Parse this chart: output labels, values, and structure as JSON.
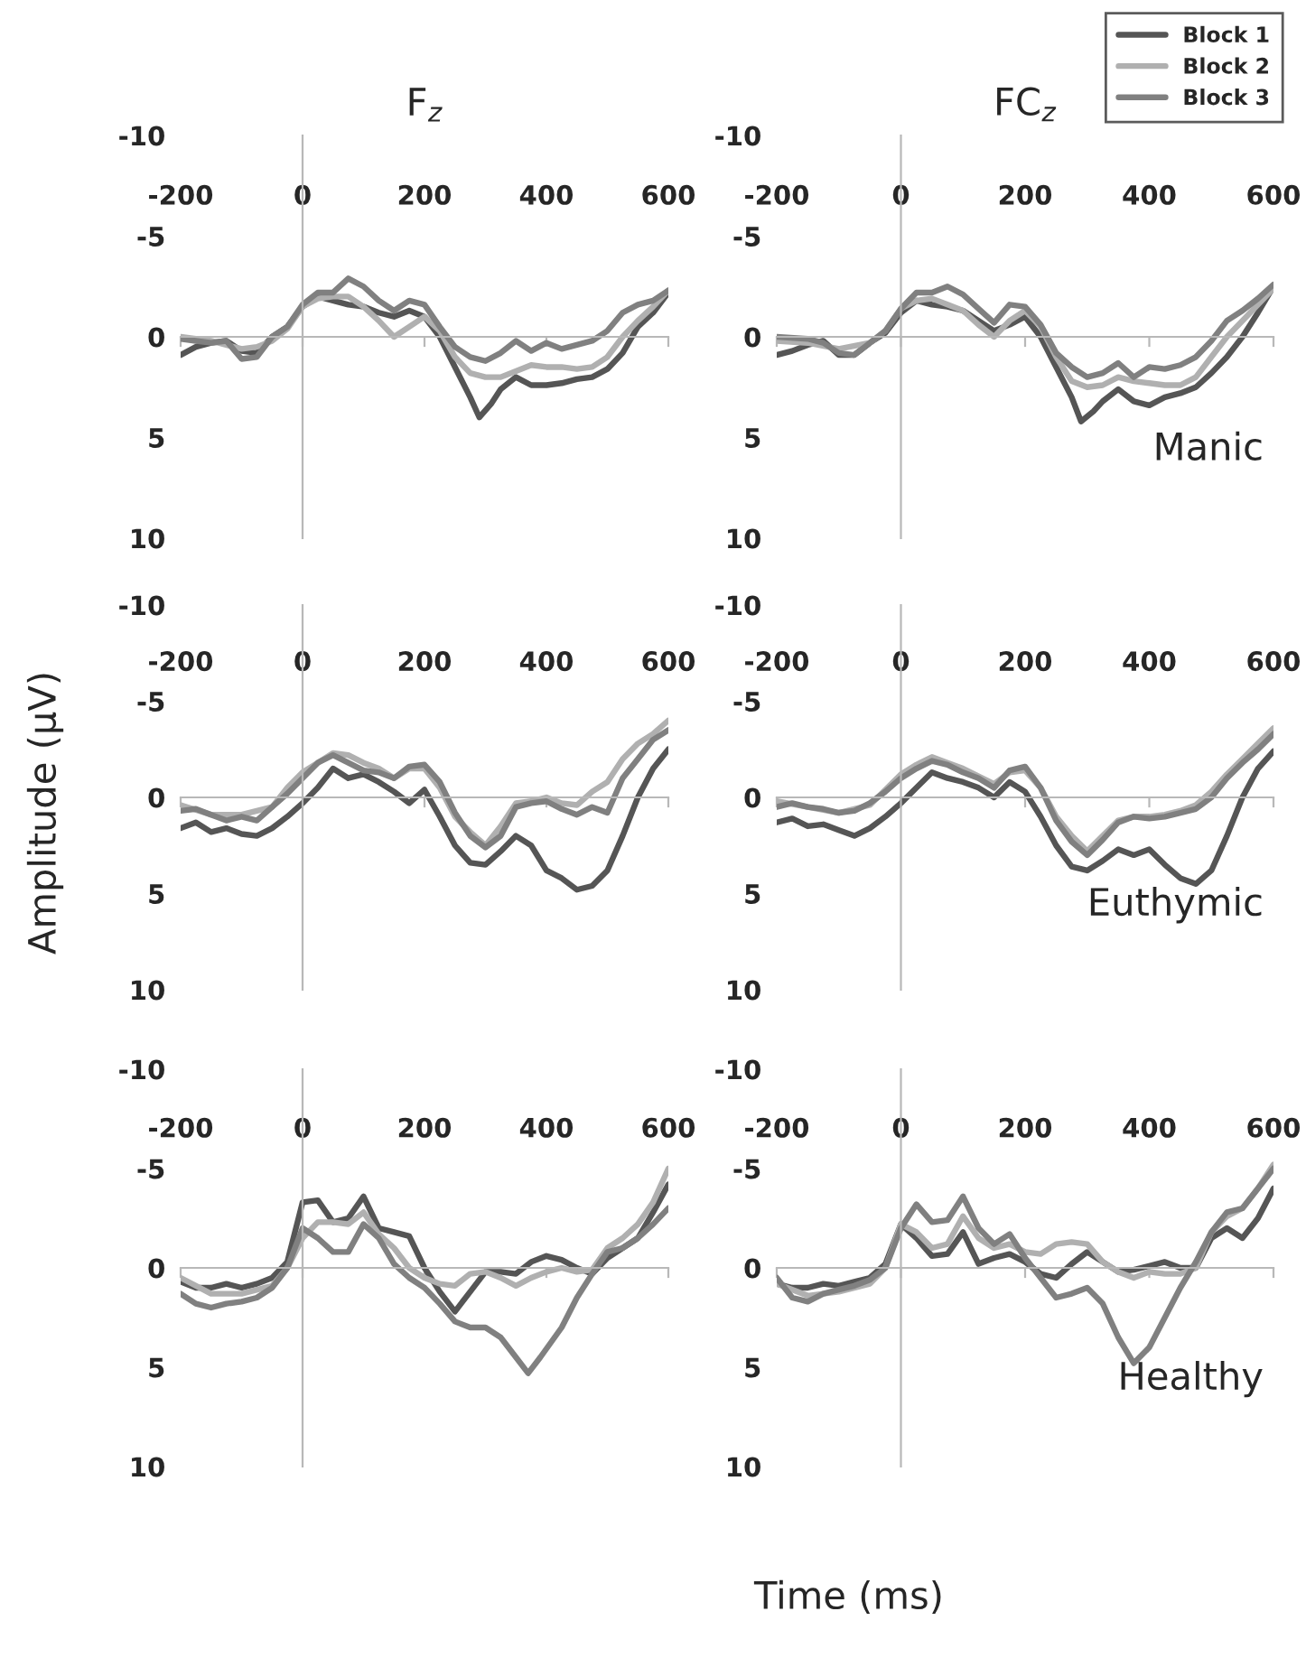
{
  "chart_data": [
    {
      "type": "line",
      "title": "F$_{z}$",
      "xlim": [
        -200,
        600
      ],
      "ylim": [
        10,
        -10
      ],
      "xticks": [
        -200,
        0,
        200,
        400,
        600
      ],
      "yticks": [
        -10,
        -5,
        0,
        5,
        10
      ],
      "legend": false,
      "series": [
        {
          "color": "#555555",
          "x": [
            -200,
            -175,
            -150,
            -125,
            -100,
            -75,
            -50,
            -25,
            0,
            25,
            50,
            75,
            100,
            125,
            150,
            175,
            200,
            225,
            250,
            275,
            290,
            310,
            325,
            350,
            375,
            400,
            425,
            450,
            475,
            500,
            525,
            550,
            575,
            600
          ],
          "values": [
            0.9,
            0.5,
            0.3,
            0.2,
            0.7,
            0.8,
            0.0,
            -0.5,
            -1.5,
            -2.0,
            -1.8,
            -1.6,
            -1.5,
            -1.2,
            -1.0,
            -1.3,
            -1.0,
            0.0,
            1.5,
            3.0,
            4.0,
            3.3,
            2.6,
            2.0,
            2.4,
            2.4,
            2.3,
            2.1,
            2.0,
            1.6,
            0.8,
            -0.5,
            -1.2,
            -2.2
          ]
        },
        {
          "color": "#b0b0b0",
          "x": [
            -200,
            -150,
            -100,
            -75,
            -50,
            -25,
            0,
            25,
            50,
            75,
            100,
            125,
            150,
            175,
            200,
            225,
            250,
            275,
            300,
            325,
            350,
            375,
            400,
            425,
            450,
            475,
            500,
            525,
            550,
            575,
            600
          ],
          "values": [
            0.0,
            0.2,
            0.6,
            0.5,
            0.2,
            -0.4,
            -1.5,
            -1.9,
            -2.0,
            -2.0,
            -1.5,
            -0.8,
            0.0,
            -0.5,
            -1.0,
            -0.3,
            1.0,
            1.8,
            2.0,
            2.0,
            1.7,
            1.4,
            1.5,
            1.5,
            1.6,
            1.5,
            1.0,
            0.0,
            -0.8,
            -1.5,
            -2.3
          ]
        },
        {
          "color": "#808080",
          "x": [
            -200,
            -175,
            -150,
            -125,
            -100,
            -75,
            -50,
            -25,
            0,
            25,
            50,
            75,
            100,
            125,
            150,
            175,
            200,
            225,
            250,
            275,
            300,
            325,
            350,
            375,
            400,
            425,
            450,
            475,
            500,
            525,
            550,
            575,
            600
          ],
          "values": [
            0.1,
            0.2,
            0.3,
            0.2,
            1.1,
            1.0,
            0.0,
            -0.5,
            -1.6,
            -2.2,
            -2.2,
            -2.9,
            -2.5,
            -1.8,
            -1.3,
            -1.8,
            -1.6,
            -0.5,
            0.5,
            1.0,
            1.2,
            0.8,
            0.2,
            0.7,
            0.3,
            0.6,
            0.4,
            0.2,
            -0.3,
            -1.2,
            -1.6,
            -1.8,
            -2.3
          ]
        }
      ]
    },
    {
      "type": "line",
      "title": "FC$_{z}$",
      "annotations": [
        "Manic"
      ],
      "xlim": [
        -200,
        600
      ],
      "ylim": [
        10,
        -10
      ],
      "xticks": [
        -200,
        0,
        200,
        400,
        600
      ],
      "yticks": [
        -10,
        -5,
        0,
        5,
        10
      ],
      "legend": "top right",
      "series": [
        {
          "name": "Block 1",
          "color": "#555555",
          "x": [
            -200,
            -175,
            -150,
            -125,
            -100,
            -75,
            -50,
            -25,
            0,
            25,
            50,
            75,
            100,
            125,
            150,
            175,
            200,
            225,
            250,
            275,
            290,
            310,
            325,
            350,
            375,
            400,
            425,
            450,
            475,
            500,
            525,
            550,
            575,
            600
          ],
          "values": [
            0.9,
            0.7,
            0.4,
            0.2,
            0.9,
            0.9,
            0.3,
            -0.2,
            -1.2,
            -1.8,
            -1.6,
            -1.5,
            -1.3,
            -0.8,
            -0.3,
            -0.6,
            -1.0,
            0.0,
            1.5,
            3.0,
            4.2,
            3.7,
            3.2,
            2.6,
            3.2,
            3.4,
            3.0,
            2.8,
            2.5,
            1.8,
            1.0,
            0.0,
            -1.2,
            -2.5
          ]
        },
        {
          "name": "Block 2",
          "color": "#b0b0b0",
          "x": [
            -200,
            -150,
            -100,
            -50,
            -25,
            0,
            25,
            50,
            75,
            100,
            125,
            150,
            175,
            200,
            225,
            250,
            275,
            300,
            325,
            350,
            375,
            400,
            425,
            450,
            475,
            500,
            525,
            550,
            575,
            600
          ],
          "values": [
            0.2,
            0.3,
            0.6,
            0.3,
            -0.3,
            -1.4,
            -1.8,
            -1.9,
            -1.6,
            -1.3,
            -0.6,
            0.0,
            -0.8,
            -1.3,
            -0.5,
            1.0,
            2.2,
            2.5,
            2.4,
            2.0,
            2.2,
            2.3,
            2.4,
            2.4,
            2.0,
            1.0,
            0.0,
            -0.8,
            -1.6,
            -2.4
          ]
        },
        {
          "name": "Block 3",
          "color": "#808080",
          "x": [
            -200,
            -150,
            -125,
            -100,
            -75,
            -50,
            -25,
            0,
            25,
            50,
            75,
            100,
            125,
            150,
            175,
            200,
            225,
            250,
            275,
            300,
            325,
            350,
            375,
            400,
            425,
            450,
            475,
            500,
            525,
            550,
            575,
            600
          ],
          "values": [
            0.0,
            0.1,
            0.3,
            0.8,
            0.9,
            0.3,
            -0.3,
            -1.4,
            -2.2,
            -2.2,
            -2.5,
            -2.1,
            -1.4,
            -0.7,
            -1.6,
            -1.5,
            -0.6,
            0.8,
            1.5,
            2.0,
            1.8,
            1.3,
            2.0,
            1.5,
            1.6,
            1.4,
            1.0,
            0.2,
            -0.8,
            -1.3,
            -1.9,
            -2.6
          ]
        }
      ]
    },
    {
      "type": "line",
      "ylabel": "Amplitude (µV)",
      "xlim": [
        -200,
        600
      ],
      "ylim": [
        10,
        -10
      ],
      "xticks": [
        -200,
        0,
        200,
        400,
        600
      ],
      "yticks": [
        -10,
        -5,
        0,
        5,
        10
      ],
      "legend": false,
      "series": [
        {
          "color": "#555555",
          "x": [
            -200,
            -175,
            -150,
            -125,
            -100,
            -75,
            -50,
            -25,
            0,
            25,
            50,
            75,
            100,
            125,
            150,
            175,
            200,
            225,
            250,
            275,
            300,
            325,
            350,
            375,
            400,
            425,
            450,
            475,
            500,
            525,
            550,
            575,
            600
          ],
          "values": [
            1.6,
            1.3,
            1.8,
            1.6,
            1.9,
            2.0,
            1.6,
            1.0,
            0.3,
            -0.5,
            -1.5,
            -1.0,
            -1.2,
            -0.8,
            -0.3,
            0.3,
            -0.4,
            1.0,
            2.5,
            3.4,
            3.5,
            2.8,
            2.0,
            2.5,
            3.8,
            4.2,
            4.8,
            4.6,
            3.8,
            2.0,
            0.0,
            -1.5,
            -2.5
          ]
        },
        {
          "color": "#b0b0b0",
          "x": [
            -200,
            -150,
            -100,
            -50,
            -25,
            0,
            25,
            50,
            75,
            100,
            125,
            150,
            175,
            200,
            225,
            250,
            275,
            300,
            325,
            350,
            375,
            400,
            425,
            450,
            475,
            500,
            525,
            550,
            575,
            600
          ],
          "values": [
            0.4,
            0.9,
            0.9,
            0.5,
            -0.5,
            -1.3,
            -1.8,
            -2.3,
            -2.2,
            -1.8,
            -1.5,
            -1.0,
            -1.5,
            -1.5,
            -0.5,
            1.0,
            1.8,
            2.5,
            1.5,
            0.3,
            0.2,
            0.0,
            0.3,
            0.4,
            -0.3,
            -0.8,
            -2.0,
            -2.8,
            -3.3,
            -4.0
          ]
        },
        {
          "color": "#808080",
          "x": [
            -200,
            -175,
            -150,
            -125,
            -100,
            -75,
            -50,
            -25,
            0,
            25,
            50,
            75,
            100,
            125,
            150,
            175,
            200,
            225,
            250,
            275,
            300,
            325,
            350,
            375,
            400,
            425,
            450,
            475,
            500,
            525,
            550,
            575,
            600
          ],
          "values": [
            0.7,
            0.6,
            0.9,
            1.2,
            1.0,
            1.2,
            0.5,
            -0.2,
            -1.0,
            -1.8,
            -2.2,
            -1.8,
            -1.4,
            -1.3,
            -1.0,
            -1.6,
            -1.7,
            -0.8,
            0.8,
            2.0,
            2.6,
            2.0,
            0.5,
            0.3,
            0.2,
            0.6,
            0.9,
            0.5,
            0.8,
            -1.0,
            -2.0,
            -3.0,
            -3.5
          ]
        }
      ]
    },
    {
      "type": "line",
      "annotations": [
        "Euthymic"
      ],
      "xlim": [
        -200,
        600
      ],
      "ylim": [
        10,
        -10
      ],
      "xticks": [
        -200,
        0,
        200,
        400,
        600
      ],
      "yticks": [
        -10,
        -5,
        0,
        5,
        10
      ],
      "legend": false,
      "series": [
        {
          "color": "#555555",
          "x": [
            -200,
            -175,
            -150,
            -125,
            -100,
            -75,
            -50,
            -25,
            0,
            25,
            50,
            75,
            100,
            125,
            150,
            175,
            200,
            225,
            250,
            275,
            300,
            325,
            350,
            375,
            400,
            425,
            450,
            475,
            500,
            525,
            550,
            575,
            600
          ],
          "values": [
            1.3,
            1.1,
            1.5,
            1.4,
            1.7,
            2.0,
            1.6,
            1.0,
            0.3,
            -0.5,
            -1.3,
            -1.0,
            -0.8,
            -0.5,
            0.0,
            -0.8,
            -0.3,
            1.0,
            2.5,
            3.6,
            3.8,
            3.3,
            2.7,
            3.0,
            2.7,
            3.5,
            4.2,
            4.5,
            3.8,
            2.0,
            0.0,
            -1.5,
            -2.4
          ]
        },
        {
          "color": "#b0b0b0",
          "x": [
            -200,
            -150,
            -100,
            -50,
            -25,
            0,
            25,
            50,
            75,
            100,
            125,
            150,
            175,
            200,
            225,
            250,
            275,
            300,
            325,
            350,
            375,
            400,
            425,
            450,
            475,
            500,
            525,
            550,
            575,
            600
          ],
          "values": [
            0.2,
            0.5,
            0.8,
            0.4,
            -0.4,
            -1.2,
            -1.7,
            -2.1,
            -1.8,
            -1.5,
            -1.1,
            -0.7,
            -1.3,
            -1.4,
            -0.5,
            1.0,
            2.0,
            2.8,
            2.0,
            1.2,
            1.0,
            1.0,
            0.9,
            0.7,
            0.4,
            -0.3,
            -1.2,
            -2.0,
            -2.8,
            -3.6
          ]
        },
        {
          "color": "#808080",
          "x": [
            -200,
            -175,
            -150,
            -125,
            -100,
            -75,
            -50,
            -25,
            0,
            25,
            50,
            75,
            100,
            125,
            150,
            175,
            200,
            225,
            250,
            275,
            300,
            325,
            350,
            375,
            400,
            425,
            450,
            475,
            500,
            525,
            550,
            575,
            600
          ],
          "values": [
            0.5,
            0.3,
            0.5,
            0.6,
            0.8,
            0.7,
            0.3,
            -0.3,
            -1.0,
            -1.5,
            -1.9,
            -1.7,
            -1.3,
            -1.0,
            -0.5,
            -1.4,
            -1.6,
            -0.5,
            1.2,
            2.3,
            3.0,
            2.2,
            1.3,
            1.0,
            1.1,
            1.0,
            0.8,
            0.6,
            0.0,
            -1.0,
            -1.8,
            -2.5,
            -3.3
          ]
        }
      ]
    },
    {
      "type": "line",
      "xlabel": "Time (ms)",
      "xlim": [
        -200,
        600
      ],
      "ylim": [
        10,
        -10
      ],
      "xticks": [
        -200,
        0,
        200,
        400,
        600
      ],
      "yticks": [
        -10,
        -5,
        0,
        5,
        10
      ],
      "legend": false,
      "series": [
        {
          "color": "#555555",
          "x": [
            -200,
            -175,
            -150,
            -125,
            -100,
            -75,
            -50,
            -25,
            0,
            25,
            50,
            75,
            100,
            125,
            150,
            175,
            200,
            225,
            250,
            275,
            300,
            325,
            350,
            375,
            400,
            425,
            450,
            475,
            500,
            525,
            550,
            575,
            600
          ],
          "values": [
            0.7,
            1.0,
            1.0,
            0.8,
            1.0,
            0.8,
            0.5,
            -0.3,
            -3.3,
            -3.4,
            -2.3,
            -2.5,
            -3.6,
            -2.0,
            -1.8,
            -1.6,
            0.0,
            1.2,
            2.2,
            1.2,
            0.2,
            0.2,
            0.3,
            -0.3,
            -0.6,
            -0.4,
            0.0,
            0.3,
            -0.5,
            -1.0,
            -1.5,
            -2.8,
            -4.2
          ]
        },
        {
          "color": "#b0b0b0",
          "x": [
            -200,
            -150,
            -100,
            -50,
            -25,
            0,
            25,
            50,
            75,
            100,
            125,
            150,
            175,
            200,
            225,
            250,
            275,
            300,
            325,
            350,
            375,
            400,
            425,
            450,
            475,
            500,
            525,
            550,
            575,
            600
          ],
          "values": [
            0.5,
            1.3,
            1.3,
            0.9,
            0.0,
            -1.5,
            -2.3,
            -2.3,
            -2.2,
            -2.8,
            -1.7,
            -1.0,
            0.0,
            0.5,
            0.8,
            0.9,
            0.3,
            0.2,
            0.5,
            0.9,
            0.5,
            0.2,
            0.0,
            0.2,
            0.1,
            -1.0,
            -1.5,
            -2.2,
            -3.3,
            -5.0
          ]
        },
        {
          "color": "#808080",
          "x": [
            -200,
            -175,
            -150,
            -125,
            -100,
            -75,
            -50,
            -25,
            0,
            25,
            50,
            75,
            100,
            125,
            150,
            175,
            200,
            225,
            250,
            275,
            300,
            325,
            350,
            370,
            390,
            425,
            450,
            475,
            500,
            525,
            550,
            575,
            600
          ],
          "values": [
            1.3,
            1.8,
            2.0,
            1.8,
            1.7,
            1.5,
            1.0,
            0.0,
            -2.0,
            -1.5,
            -0.8,
            -0.8,
            -2.2,
            -1.5,
            -0.2,
            0.5,
            1.0,
            1.8,
            2.7,
            3.0,
            3.0,
            3.5,
            4.5,
            5.3,
            4.5,
            3.0,
            1.5,
            0.3,
            -0.8,
            -1.0,
            -1.5,
            -2.2,
            -3.0
          ]
        }
      ]
    },
    {
      "type": "line",
      "annotations": [
        "Healthy"
      ],
      "xlim": [
        -200,
        600
      ],
      "ylim": [
        10,
        -10
      ],
      "xticks": [
        -200,
        0,
        200,
        400,
        600
      ],
      "yticks": [
        -10,
        -5,
        0,
        5,
        10
      ],
      "legend": false,
      "series": [
        {
          "color": "#555555",
          "x": [
            -200,
            -175,
            -150,
            -125,
            -100,
            -75,
            -50,
            -25,
            0,
            25,
            50,
            75,
            100,
            125,
            150,
            175,
            200,
            225,
            250,
            275,
            300,
            325,
            350,
            375,
            400,
            425,
            450,
            475,
            500,
            525,
            550,
            575,
            600
          ],
          "values": [
            0.8,
            1.0,
            1.0,
            0.8,
            0.9,
            0.7,
            0.5,
            -0.2,
            -2.2,
            -1.5,
            -0.6,
            -0.7,
            -1.8,
            -0.2,
            -0.5,
            -0.7,
            -0.3,
            0.3,
            0.5,
            -0.2,
            -0.8,
            -0.3,
            0.2,
            0.1,
            -0.1,
            -0.3,
            0.0,
            0.0,
            -1.5,
            -2.0,
            -1.5,
            -2.5,
            -4.0
          ]
        },
        {
          "color": "#b0b0b0",
          "x": [
            -200,
            -150,
            -100,
            -50,
            -25,
            0,
            25,
            50,
            75,
            100,
            125,
            150,
            175,
            200,
            225,
            250,
            275,
            300,
            325,
            350,
            375,
            400,
            425,
            450,
            475,
            500,
            525,
            550,
            575,
            600
          ],
          "values": [
            0.8,
            1.4,
            1.2,
            0.8,
            0.0,
            -2.2,
            -1.8,
            -1.0,
            -1.2,
            -2.6,
            -1.5,
            -1.0,
            -1.2,
            -0.8,
            -0.7,
            -1.2,
            -1.3,
            -1.2,
            -0.3,
            0.2,
            0.5,
            0.2,
            0.3,
            0.3,
            0.0,
            -1.8,
            -2.6,
            -3.0,
            -4.0,
            -5.2
          ]
        },
        {
          "color": "#808080",
          "x": [
            -200,
            -175,
            -150,
            -125,
            -100,
            -75,
            -50,
            -25,
            0,
            25,
            50,
            75,
            100,
            125,
            150,
            175,
            200,
            225,
            250,
            275,
            300,
            325,
            350,
            375,
            400,
            425,
            450,
            475,
            500,
            525,
            550,
            575,
            600
          ],
          "values": [
            0.5,
            1.5,
            1.7,
            1.3,
            1.1,
            0.9,
            0.6,
            0.0,
            -2.0,
            -3.2,
            -2.3,
            -2.4,
            -3.6,
            -2.0,
            -1.2,
            -1.7,
            -0.5,
            0.5,
            1.5,
            1.3,
            1.0,
            1.8,
            3.5,
            4.8,
            4.0,
            2.5,
            1.0,
            -0.3,
            -1.8,
            -2.8,
            -3.0,
            -4.0,
            -5.0
          ]
        }
      ]
    }
  ]
}
